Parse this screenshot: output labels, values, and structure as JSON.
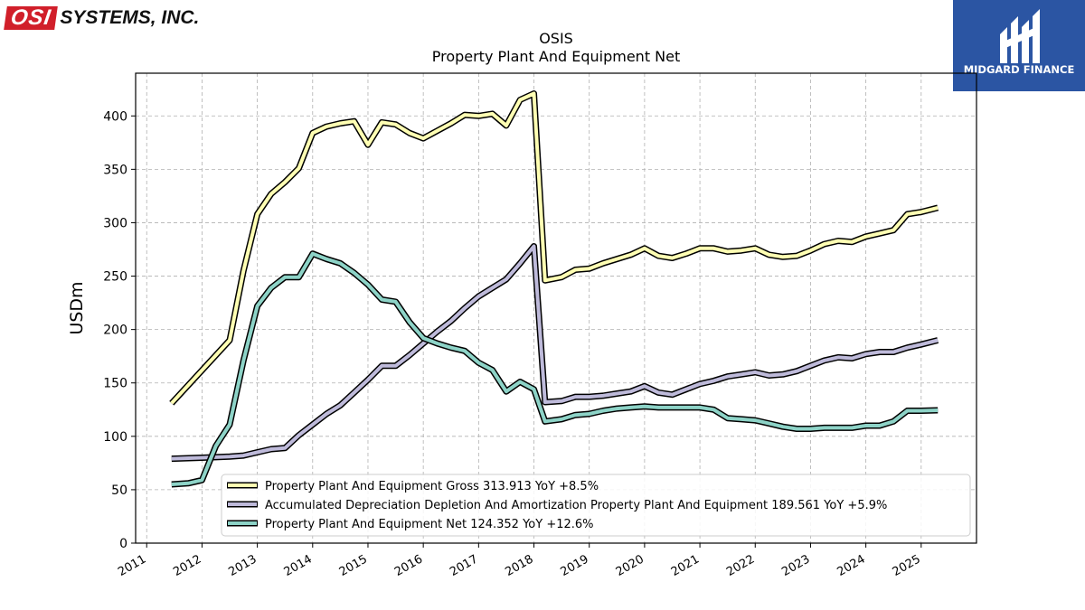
{
  "logos": {
    "left_mark": "OSI",
    "left_name": "SYSTEMS, INC.",
    "right_name": "MIDGARD FINANCE"
  },
  "colors": {
    "gross": "#ffffb3",
    "accum": "#bebada",
    "net": "#8dd3c7",
    "outline": "#000000",
    "grid": "#b0b0b0",
    "brand_red": "#d11f2a",
    "brand_blue": "#2b55a3"
  },
  "chart_data": {
    "type": "line",
    "title": "OSIS",
    "subtitle": "Property Plant And Equipment Net",
    "xlabel": "",
    "ylabel": "USDm",
    "xlim": [
      2010.8,
      2026.0
    ],
    "ylim": [
      0,
      440
    ],
    "yticks": [
      0,
      50,
      100,
      150,
      200,
      250,
      300,
      350,
      400
    ],
    "xticks": [
      2011,
      2012,
      2013,
      2014,
      2015,
      2016,
      2017,
      2018,
      2019,
      2020,
      2021,
      2022,
      2023,
      2024,
      2025
    ],
    "grid": true,
    "legend_position": "lower-right",
    "series": [
      {
        "name": "Property Plant And Equipment Gross",
        "legend_label": "Property Plant And Equipment Gross  313.913 YoY +8.5%",
        "color_key": "gross",
        "points": [
          [
            2011.45,
            131
          ],
          [
            2012.5,
            190
          ],
          [
            2012.75,
            255
          ],
          [
            2013.0,
            308
          ],
          [
            2013.25,
            327
          ],
          [
            2013.5,
            338
          ],
          [
            2013.75,
            351
          ],
          [
            2014.0,
            384
          ],
          [
            2014.25,
            390
          ],
          [
            2014.5,
            393
          ],
          [
            2014.75,
            395
          ],
          [
            2015.0,
            373
          ],
          [
            2015.25,
            394
          ],
          [
            2015.5,
            392
          ],
          [
            2015.75,
            384
          ],
          [
            2016.0,
            379
          ],
          [
            2016.25,
            386
          ],
          [
            2016.5,
            393
          ],
          [
            2016.75,
            401
          ],
          [
            2017.0,
            400
          ],
          [
            2017.25,
            402
          ],
          [
            2017.5,
            391
          ],
          [
            2017.75,
            415
          ],
          [
            2018.0,
            421
          ],
          [
            2018.2,
            246
          ],
          [
            2018.5,
            249
          ],
          [
            2018.75,
            256
          ],
          [
            2019.0,
            257
          ],
          [
            2019.25,
            262
          ],
          [
            2019.5,
            266
          ],
          [
            2019.75,
            270
          ],
          [
            2020.0,
            276
          ],
          [
            2020.25,
            269
          ],
          [
            2020.5,
            267
          ],
          [
            2020.75,
            271
          ],
          [
            2021.0,
            276
          ],
          [
            2021.25,
            276
          ],
          [
            2021.5,
            273
          ],
          [
            2021.75,
            274
          ],
          [
            2022.0,
            276
          ],
          [
            2022.25,
            270
          ],
          [
            2022.5,
            268
          ],
          [
            2022.75,
            269
          ],
          [
            2023.0,
            274
          ],
          [
            2023.25,
            280
          ],
          [
            2023.5,
            283
          ],
          [
            2023.75,
            282
          ],
          [
            2024.0,
            287
          ],
          [
            2024.25,
            290
          ],
          [
            2024.5,
            293
          ],
          [
            2024.75,
            308
          ],
          [
            2025.0,
            310
          ],
          [
            2025.3,
            314
          ]
        ]
      },
      {
        "name": "Accumulated Depreciation Depletion And Amortization Property Plant And Equipment",
        "legend_label": "Accumulated Depreciation Depletion And Amortization Property Plant And Equipment  189.561 YoY +5.9%",
        "color_key": "accum",
        "points": [
          [
            2011.45,
            79
          ],
          [
            2012.0,
            80
          ],
          [
            2012.5,
            81
          ],
          [
            2012.75,
            82
          ],
          [
            2013.0,
            85
          ],
          [
            2013.25,
            88
          ],
          [
            2013.5,
            89
          ],
          [
            2013.75,
            101
          ],
          [
            2014.0,
            111
          ],
          [
            2014.25,
            121
          ],
          [
            2014.5,
            129
          ],
          [
            2014.75,
            141
          ],
          [
            2015.0,
            153
          ],
          [
            2015.25,
            166
          ],
          [
            2015.5,
            166
          ],
          [
            2015.75,
            176
          ],
          [
            2016.0,
            187
          ],
          [
            2016.25,
            198
          ],
          [
            2016.5,
            208
          ],
          [
            2016.75,
            220
          ],
          [
            2017.0,
            231
          ],
          [
            2017.25,
            239
          ],
          [
            2017.5,
            247
          ],
          [
            2017.75,
            262
          ],
          [
            2018.0,
            278
          ],
          [
            2018.2,
            132
          ],
          [
            2018.5,
            133
          ],
          [
            2018.75,
            137
          ],
          [
            2019.0,
            137
          ],
          [
            2019.25,
            138
          ],
          [
            2019.5,
            140
          ],
          [
            2019.75,
            142
          ],
          [
            2020.0,
            147
          ],
          [
            2020.25,
            141
          ],
          [
            2020.5,
            139
          ],
          [
            2020.75,
            144
          ],
          [
            2021.0,
            149
          ],
          [
            2021.25,
            152
          ],
          [
            2021.5,
            156
          ],
          [
            2021.75,
            158
          ],
          [
            2022.0,
            160
          ],
          [
            2022.25,
            157
          ],
          [
            2022.5,
            158
          ],
          [
            2022.75,
            161
          ],
          [
            2023.0,
            166
          ],
          [
            2023.25,
            171
          ],
          [
            2023.5,
            174
          ],
          [
            2023.75,
            173
          ],
          [
            2024.0,
            177
          ],
          [
            2024.25,
            179
          ],
          [
            2024.5,
            179
          ],
          [
            2024.75,
            183
          ],
          [
            2025.0,
            186
          ],
          [
            2025.3,
            190
          ]
        ]
      },
      {
        "name": "Property Plant And Equipment Net",
        "legend_label": "Property Plant And Equipment Net  124.352 YoY +12.6%",
        "color_key": "net",
        "points": [
          [
            2011.45,
            55
          ],
          [
            2011.75,
            56
          ],
          [
            2012.0,
            59
          ],
          [
            2012.25,
            91
          ],
          [
            2012.5,
            111
          ],
          [
            2012.75,
            171
          ],
          [
            2013.0,
            222
          ],
          [
            2013.25,
            239
          ],
          [
            2013.5,
            249
          ],
          [
            2013.75,
            249
          ],
          [
            2014.0,
            271
          ],
          [
            2014.25,
            266
          ],
          [
            2014.5,
            262
          ],
          [
            2014.75,
            253
          ],
          [
            2015.0,
            242
          ],
          [
            2015.25,
            228
          ],
          [
            2015.5,
            226
          ],
          [
            2015.75,
            207
          ],
          [
            2016.0,
            192
          ],
          [
            2016.25,
            187
          ],
          [
            2016.5,
            183
          ],
          [
            2016.75,
            180
          ],
          [
            2017.0,
            169
          ],
          [
            2017.25,
            162
          ],
          [
            2017.5,
            142
          ],
          [
            2017.75,
            151
          ],
          [
            2018.0,
            144
          ],
          [
            2018.2,
            114
          ],
          [
            2018.5,
            116
          ],
          [
            2018.75,
            120
          ],
          [
            2019.0,
            121
          ],
          [
            2019.25,
            124
          ],
          [
            2019.5,
            126
          ],
          [
            2019.75,
            127
          ],
          [
            2020.0,
            128
          ],
          [
            2020.25,
            127
          ],
          [
            2020.5,
            127
          ],
          [
            2020.75,
            127
          ],
          [
            2021.0,
            127
          ],
          [
            2021.25,
            125
          ],
          [
            2021.5,
            117
          ],
          [
            2021.75,
            116
          ],
          [
            2022.0,
            115
          ],
          [
            2022.25,
            112
          ],
          [
            2022.5,
            109
          ],
          [
            2022.75,
            107
          ],
          [
            2023.0,
            107
          ],
          [
            2023.25,
            108
          ],
          [
            2023.5,
            108
          ],
          [
            2023.75,
            108
          ],
          [
            2024.0,
            110
          ],
          [
            2024.25,
            110
          ],
          [
            2024.5,
            114
          ],
          [
            2024.75,
            124
          ],
          [
            2025.0,
            124
          ],
          [
            2025.3,
            124.4
          ]
        ]
      }
    ]
  }
}
